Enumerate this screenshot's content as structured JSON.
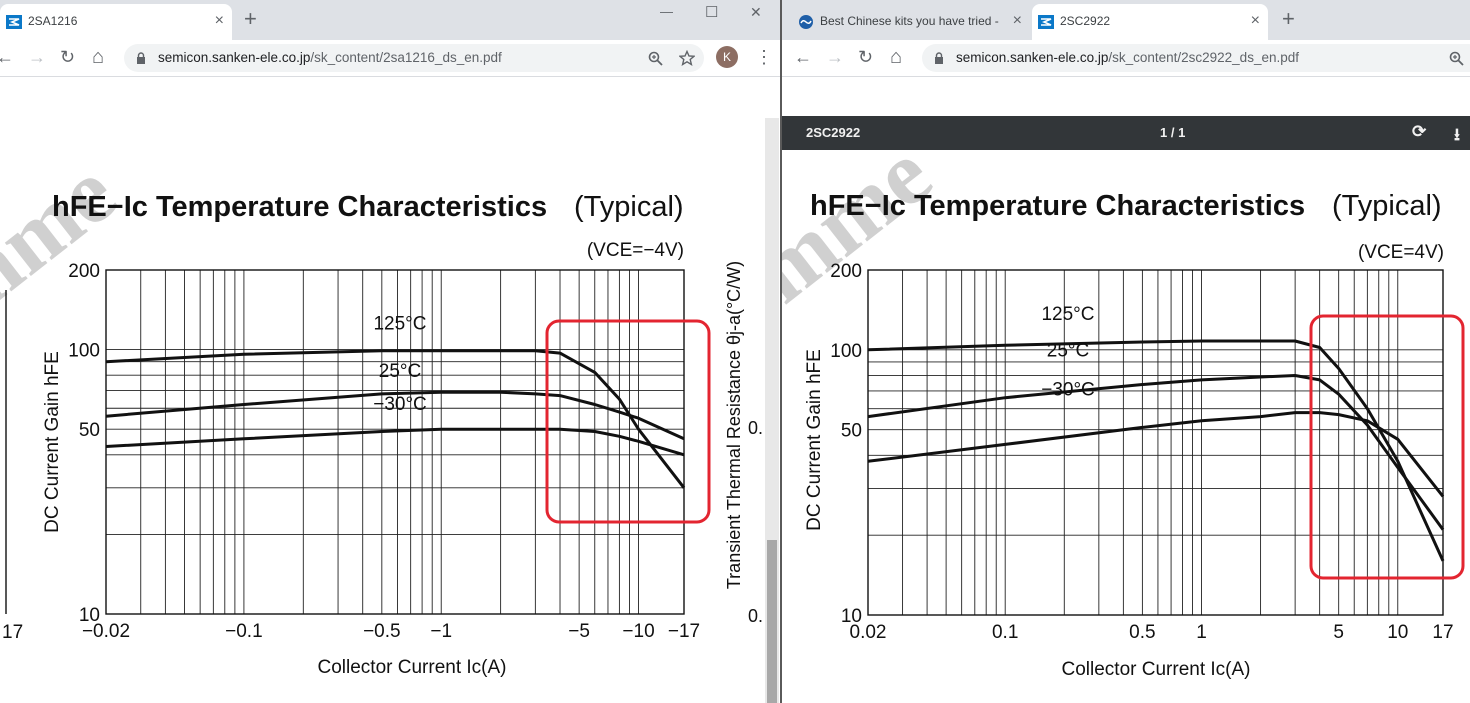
{
  "left_window": {
    "tab": {
      "title": "2SA1216",
      "close": "×"
    },
    "new_tab": "+",
    "window_controls": {
      "minimize": "—",
      "maximize": "☐",
      "close": "✕"
    },
    "nav": {
      "back": "←",
      "forward": "→",
      "reload": "↻",
      "home": "⌂"
    },
    "url": {
      "domain": "semicon.sanken-ele.co.jp",
      "path": "/sk_content/2sa1216_ds_en.pdf"
    },
    "avatar_letter": "K",
    "menu": "⋮",
    "chart": {
      "title_main": "hFE−Ic Temperature  Characteristics",
      "title_note": "(Typical)",
      "condition": "(VCE=−4V)",
      "ylabel": "DC Current Gain hFE",
      "xlabel": "Collector Current Ic(A)",
      "side_label": "Transient Thermal Resistance θj-a(°C/W)",
      "side_tick": "0.",
      "side_tick2": "0.",
      "left_edge_tick": "17",
      "ytick_labels": [
        "200",
        "100",
        "50",
        "10"
      ],
      "xtick_labels": [
        "−0.02",
        "−0.1",
        "−0.5",
        "−1",
        "−5",
        "−10",
        "−17"
      ]
    }
  },
  "right_window": {
    "tabs": [
      {
        "title": "Best Chinese kits you have tried -",
        "close": "×"
      },
      {
        "title": "2SC2922",
        "close": "×"
      }
    ],
    "new_tab": "+",
    "nav": {
      "back": "←",
      "forward": "→",
      "reload": "↻",
      "home": "⌂"
    },
    "url": {
      "domain": "semicon.sanken-ele.co.jp",
      "path": "/sk_content/2sc2922_ds_en.pdf"
    },
    "pdf_viewer": {
      "doc_title": "2SC2922",
      "page": "1 / 1",
      "rotate": "⟳",
      "download": "⭳"
    },
    "chart": {
      "title_main": "hFE−Ic Temperature  Characteristics",
      "title_note": "(Typical)",
      "condition": "(VCE=4V)",
      "ylabel": "DC Current Gain hFE",
      "xlabel": "Collector Current Ic(A)",
      "ytick_labels": [
        "200",
        "100",
        "50",
        "10"
      ],
      "xtick_labels": [
        "0.02",
        "0.1",
        "0.5",
        "1",
        "5",
        "10",
        "17"
      ]
    }
  },
  "chart_data": [
    {
      "type": "line",
      "title": "hFE−Ic Temperature Characteristics (Typical)",
      "subtitle": "(VCE=−4V)",
      "xlabel": "Collector Current Ic(A)",
      "ylabel": "DC Current Gain hFE",
      "x_scale": "log",
      "y_scale": "log",
      "xlim": [
        0.02,
        17
      ],
      "ylim": [
        10,
        200
      ],
      "x_sign": "negative",
      "grid": true,
      "series": [
        {
          "name": "125°C",
          "x": [
            0.02,
            0.1,
            0.5,
            1,
            2,
            3,
            4,
            6,
            8,
            10,
            17
          ],
          "y": [
            90,
            96,
            99,
            99,
            99,
            99,
            97,
            82,
            65,
            50,
            30
          ]
        },
        {
          "name": "25°C",
          "x": [
            0.02,
            0.1,
            0.5,
            1,
            2,
            3,
            4,
            6,
            8,
            10,
            17
          ],
          "y": [
            56,
            62,
            68,
            69,
            69,
            68,
            67,
            62,
            58,
            55,
            46
          ]
        },
        {
          "name": "−30°C",
          "x": [
            0.02,
            0.1,
            0.5,
            1,
            2,
            3,
            4,
            6,
            8,
            10,
            17
          ],
          "y": [
            43,
            46,
            49,
            50,
            50,
            50,
            50,
            49,
            47,
            45,
            40
          ]
        }
      ],
      "annotation": "red highlight box around −4 to −17 A"
    },
    {
      "type": "line",
      "title": "hFE−Ic Temperature Characteristics (Typical)",
      "subtitle": "(VCE=4V)",
      "xlabel": "Collector Current Ic(A)",
      "ylabel": "DC Current Gain hFE",
      "x_scale": "log",
      "y_scale": "log",
      "xlim": [
        0.02,
        17
      ],
      "ylim": [
        10,
        200
      ],
      "grid": true,
      "series": [
        {
          "name": "125°C",
          "x": [
            0.02,
            0.1,
            0.5,
            1,
            2,
            3,
            4,
            5,
            7,
            10,
            17
          ],
          "y": [
            100,
            104,
            107,
            108,
            108,
            108,
            102,
            85,
            60,
            38,
            16
          ]
        },
        {
          "name": "25°C",
          "x": [
            0.02,
            0.1,
            0.5,
            1,
            2,
            3,
            4,
            5,
            7,
            10,
            17
          ],
          "y": [
            56,
            66,
            74,
            77,
            79,
            80,
            77,
            68,
            52,
            36,
            21
          ]
        },
        {
          "name": "−30°C",
          "x": [
            0.02,
            0.1,
            0.5,
            1,
            2,
            3,
            4,
            5,
            7,
            10,
            17
          ],
          "y": [
            38,
            44,
            51,
            54,
            56,
            58,
            58,
            57,
            54,
            46,
            28
          ]
        }
      ],
      "annotation": "red highlight box around 3 to 17 A"
    }
  ],
  "colors": {
    "tabbar": "#dee1e6",
    "omnibox": "#f1f3f4",
    "pdf_toolbar": "#323639",
    "highlight": "#e32530",
    "avatar": "#8d6e63",
    "favicon": "#0b78c8",
    "watermark": "#d9d9d9"
  }
}
